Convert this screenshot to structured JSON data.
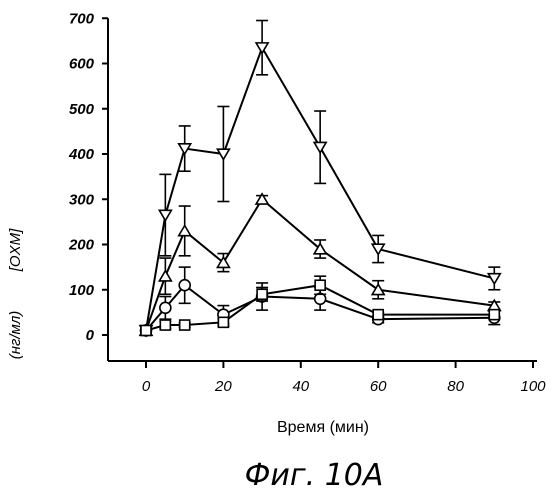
{
  "chart_data": {
    "type": "line",
    "title": "",
    "xlabel": "Время (мин)",
    "ylabel_main": "[OXM]",
    "ylabel_unit": "(нг/мл)",
    "caption": "Фиг. 10А",
    "xlim": [
      -10,
      100
    ],
    "ylim": [
      -30,
      700
    ],
    "x_ticks": [
      0,
      20,
      40,
      60,
      80,
      100
    ],
    "y_ticks": [
      0,
      100,
      200,
      300,
      400,
      500,
      600,
      700
    ],
    "grid": false,
    "series": [
      {
        "marker": "triangle-down",
        "x": [
          0,
          5,
          10,
          20,
          30,
          45,
          60,
          90
        ],
        "values": [
          10,
          265,
          412,
          400,
          635,
          415,
          190,
          125
        ],
        "err": [
          0,
          90,
          50,
          105,
          60,
          80,
          30,
          25
        ]
      },
      {
        "marker": "triangle-up",
        "x": [
          0,
          5,
          10,
          20,
          30,
          45,
          60,
          90
        ],
        "values": [
          10,
          130,
          230,
          160,
          300,
          190,
          100,
          65
        ],
        "err": [
          0,
          40,
          55,
          20,
          8,
          20,
          20,
          8
        ]
      },
      {
        "marker": "circle",
        "x": [
          0,
          5,
          10,
          20,
          30,
          45,
          60,
          90
        ],
        "values": [
          10,
          60,
          110,
          45,
          85,
          80,
          35,
          38
        ],
        "err": [
          0,
          25,
          40,
          20,
          30,
          25,
          8,
          15
        ]
      },
      {
        "marker": "square",
        "x": [
          0,
          5,
          10,
          20,
          30,
          45,
          60,
          90
        ],
        "values": [
          10,
          22,
          22,
          28,
          90,
          110,
          45,
          45
        ],
        "err": [
          0,
          8,
          5,
          8,
          15,
          20,
          5,
          8
        ]
      }
    ]
  }
}
